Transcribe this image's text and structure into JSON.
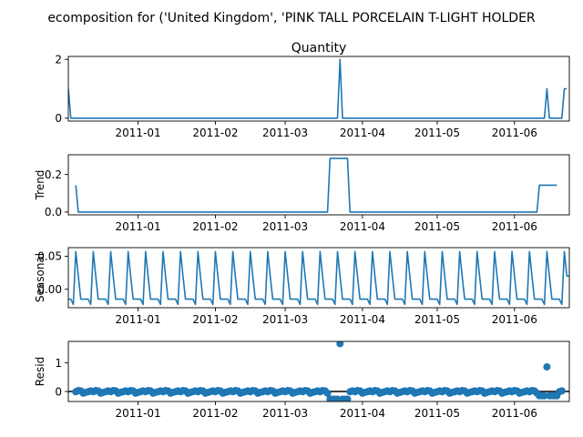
{
  "figure_title": "ecomposition for ('United Kingdom', 'PINK TALL PORCELAIN T-LIGHT HOLDER",
  "colors": {
    "line": "#1f77b4",
    "axis": "#000000"
  },
  "chart_data": [
    {
      "type": "line",
      "title": "Quantity",
      "ylabel": "",
      "x_start": "2010-12-04",
      "x_end": "2011-06-23",
      "xticks": [
        "2011-01",
        "2011-02",
        "2011-03",
        "2011-04",
        "2011-05",
        "2011-06"
      ],
      "yticks": [
        0,
        2
      ],
      "ylim": [
        -0.1,
        2.1
      ],
      "series": [
        {
          "x": [
            "2010-12-04",
            "2010-12-05",
            "2011-03-22",
            "2011-03-23",
            "2011-03-24",
            "2011-06-13",
            "2011-06-14",
            "2011-06-15",
            "2011-06-20",
            "2011-06-21",
            "2011-06-22"
          ],
          "values": [
            1,
            0,
            0,
            2,
            0,
            0,
            1,
            0,
            0,
            1,
            1
          ]
        }
      ]
    },
    {
      "type": "line",
      "title": "",
      "ylabel": "Trend",
      "x_start": "2010-12-04",
      "x_end": "2011-06-23",
      "xticks": [
        "2011-01",
        "2011-02",
        "2011-03",
        "2011-04",
        "2011-05",
        "2011-06"
      ],
      "yticks": [
        0.0,
        0.2
      ],
      "ylim": [
        -0.015,
        0.305
      ],
      "series": [
        {
          "x": [
            "2010-12-07",
            "2010-12-08",
            "2011-03-18",
            "2011-03-19",
            "2011-03-26",
            "2011-03-27",
            "2011-06-10",
            "2011-06-11",
            "2011-06-18"
          ],
          "values": [
            0.143,
            0,
            0,
            0.286,
            0.286,
            0,
            0,
            0.143,
            0.143
          ]
        }
      ]
    },
    {
      "type": "line",
      "title": "",
      "ylabel": "Seasonal",
      "x_start": "2010-12-04",
      "x_end": "2011-06-23",
      "xticks": [
        "2011-01",
        "2011-02",
        "2011-03",
        "2011-04",
        "2011-05",
        "2011-06"
      ],
      "yticks": [
        0.0,
        0.05
      ],
      "ylim": [
        -0.028,
        0.063
      ],
      "period_days": 7,
      "weekly_pattern": [
        -0.015,
        -0.015,
        -0.023,
        0.057,
        0.02,
        -0.015,
        -0.015
      ],
      "weekly_start": "2010-12-04",
      "last_value": 0.02
    },
    {
      "type": "scatter",
      "title": "",
      "ylabel": "Resid",
      "x_start": "2010-12-04",
      "x_end": "2011-06-23",
      "xticks": [
        "2011-01",
        "2011-02",
        "2011-03",
        "2011-04",
        "2011-05",
        "2011-06"
      ],
      "yticks": [
        0,
        1
      ],
      "ylim": [
        -0.35,
        1.75
      ],
      "baseline": 0,
      "period_days": 7,
      "weekly_pattern": [
        -0.01,
        0.03,
        0.02,
        -0.06,
        -0.03,
        -0.01,
        0.02
      ],
      "points_start": "2010-12-07",
      "points_end": "2011-06-20",
      "outliers": [
        {
          "x": "2011-03-23",
          "y": 1.67
        },
        {
          "x": "2011-06-14",
          "y": 0.86
        }
      ],
      "negative_runs": [
        {
          "from": "2011-03-19",
          "to": "2011-03-26",
          "y": -0.27
        },
        {
          "from": "2011-06-11",
          "to": "2011-06-18",
          "y": -0.15
        }
      ]
    }
  ]
}
